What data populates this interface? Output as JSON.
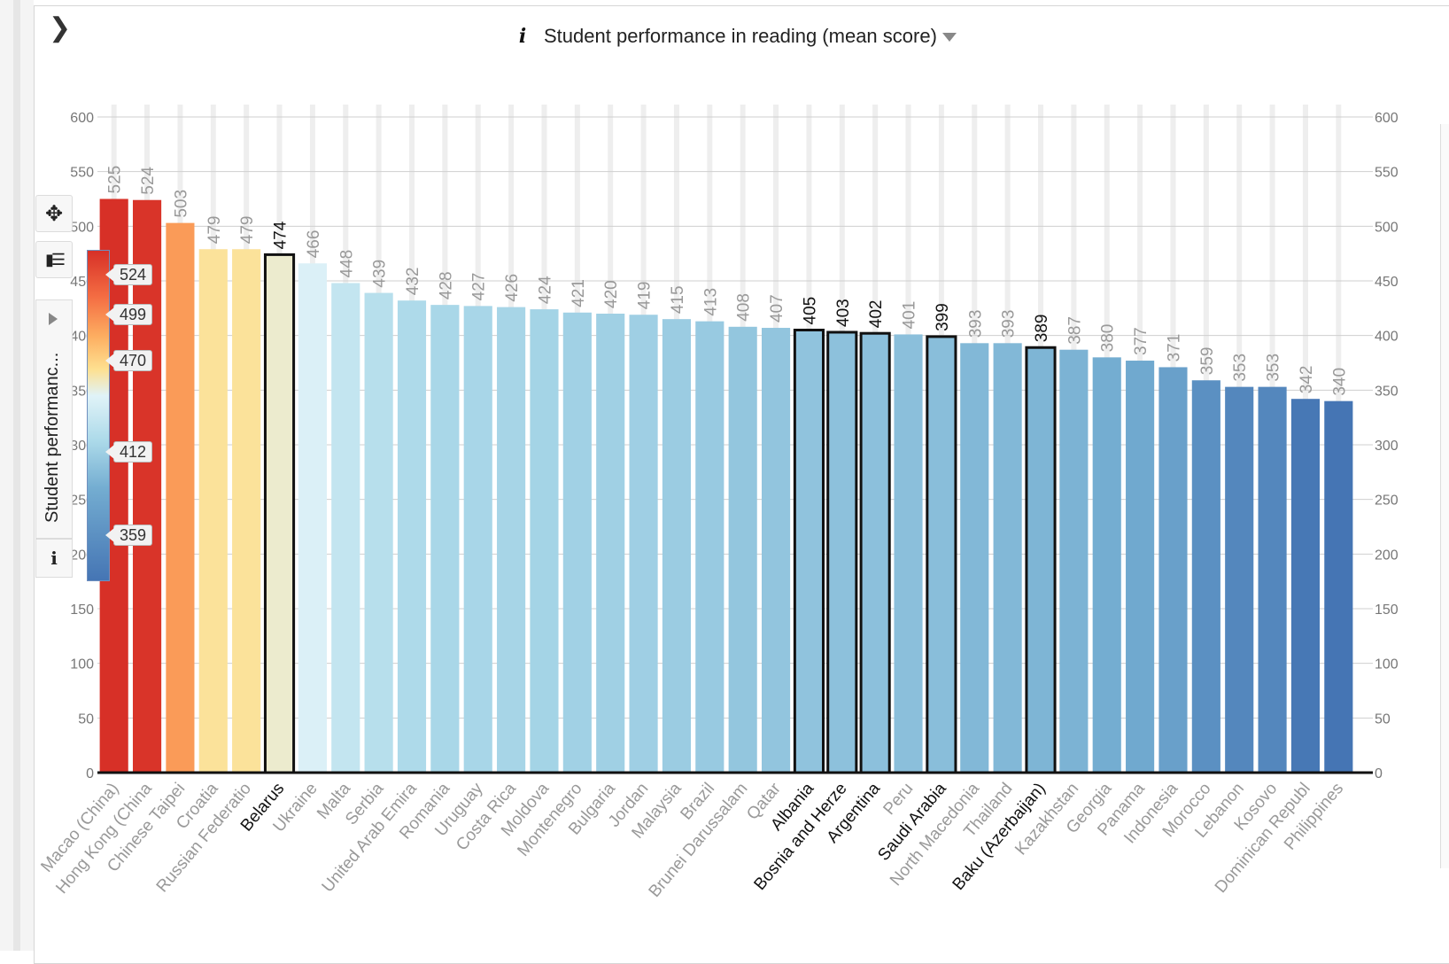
{
  "toolbar": {
    "expand_icon": "chevron-right-icon",
    "expand_glyph": "❯",
    "info_glyph": "i",
    "move_glyph": "✥",
    "layout_glyph": "▮☰"
  },
  "legend": {
    "label": "Student performanc...",
    "info_glyph": "i",
    "ticks": [
      524,
      499,
      470,
      412,
      359
    ]
  },
  "chart_data": {
    "type": "bar",
    "title": "Student performance in reading (mean score)",
    "ylim": [
      0,
      600
    ],
    "yticks": [
      0,
      50,
      100,
      150,
      200,
      250,
      300,
      350,
      400,
      450,
      500,
      550,
      600
    ],
    "grid": true,
    "categories": [
      "Macao (China)",
      "Hong Kong (China",
      "Chinese Taipei",
      "Croatia",
      "Russian Federatio",
      "Belarus",
      "Ukraine",
      "Malta",
      "Serbia",
      "United Arab Emira",
      "Romania",
      "Uruguay",
      "Costa Rica",
      "Moldova",
      "Montenegro",
      "Bulgaria",
      "Jordan",
      "Malaysia",
      "Brazil",
      "Brunei Darussalam",
      "Qatar",
      "Albania",
      "Bosnia and Herze",
      "Argentina",
      "Peru",
      "Saudi Arabia",
      "North Macedonia",
      "Thailand",
      "Baku (Azerbaijan)",
      "Kazakhstan",
      "Georgia",
      "Panama",
      "Indonesia",
      "Morocco",
      "Lebanon",
      "Kosovo",
      "Dominican Republ",
      "Philippines"
    ],
    "values": [
      525,
      524,
      503,
      479,
      479,
      474,
      466,
      448,
      439,
      432,
      428,
      427,
      426,
      424,
      421,
      420,
      419,
      415,
      413,
      408,
      407,
      405,
      403,
      402,
      401,
      399,
      393,
      393,
      389,
      387,
      380,
      377,
      371,
      359,
      353,
      353,
      342,
      340
    ],
    "highlighted": [
      "Belarus",
      "Albania",
      "Bosnia and Herze",
      "Argentina",
      "Saudi Arabia",
      "Baku (Azerbaijan)"
    ],
    "colors": {
      "high": "#d73027",
      "mid": "#f46d43",
      "gold": "#fee090",
      "low": "#4575b4",
      "gridline": "#cfcfcf",
      "label_muted": "#999999",
      "label_highlight": "#111111"
    }
  }
}
